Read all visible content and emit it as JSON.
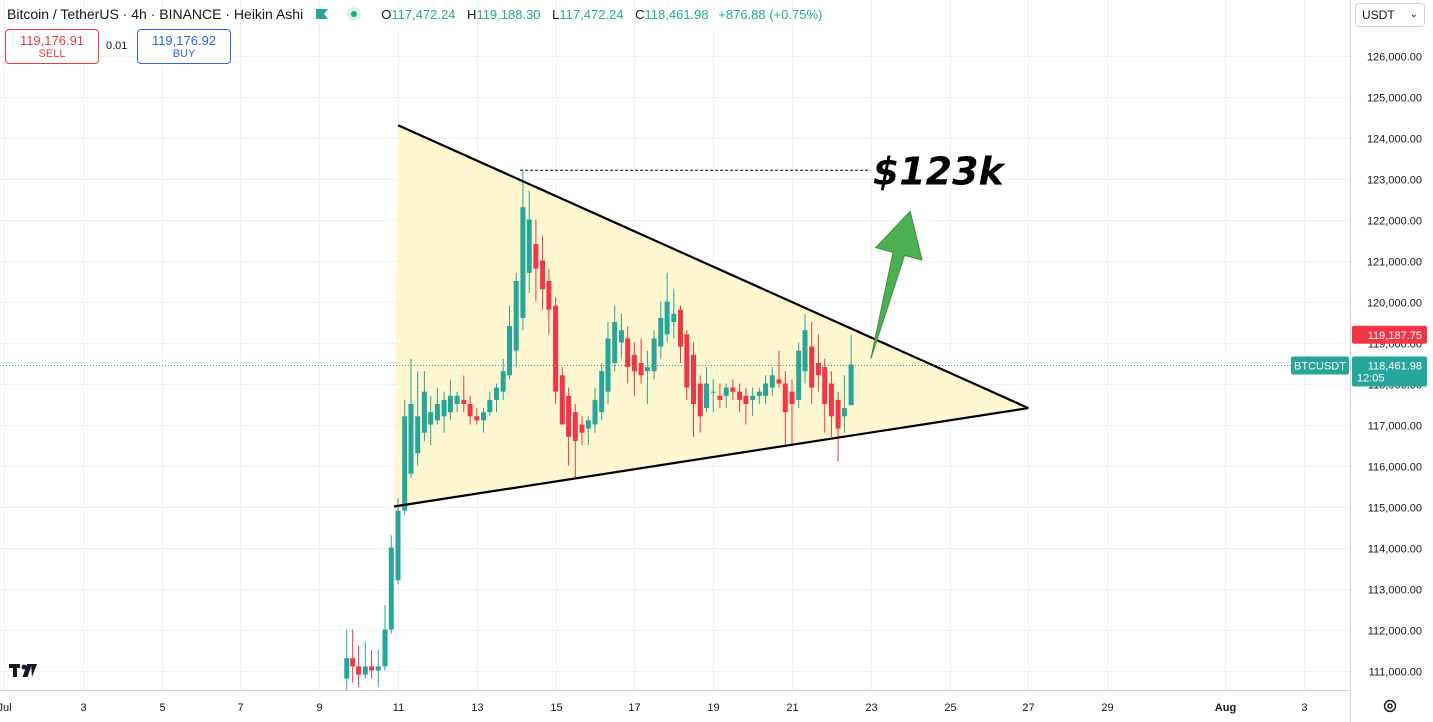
{
  "header": {
    "title": "Bitcoin / TetherUS · 4h · BINANCE · Heikin Ashi",
    "open_label": "O",
    "open": "117,472.24",
    "high_label": "H",
    "high": "119,188.30",
    "low_label": "L",
    "low": "117,472.24",
    "close_label": "C",
    "close": "118,461.98",
    "change": "+876.88 (+0.75%)"
  },
  "trade": {
    "sell_price": "119,176.91",
    "sell_label": "SELL",
    "spread": "0.01",
    "buy_price": "119,176.92",
    "buy_label": "BUY"
  },
  "currency": {
    "value": "USDT"
  },
  "price_tags": {
    "ask": "119,187.75",
    "symbol": "BTCUSDT",
    "last": "118,461.98",
    "countdown": "12:05"
  },
  "annotation": {
    "target": "$123k"
  },
  "colors": {
    "up": "#26a69a",
    "down": "#f23645",
    "triangle_fill": "#fff6c7",
    "arrow": "#4caf50"
  },
  "chart_data": {
    "type": "candlestick",
    "title": "Bitcoin / TetherUS · 4h · BINANCE · Heikin Ashi",
    "y_ticks": [
      "111,000.00",
      "112,000.00",
      "113,000.00",
      "114,000.00",
      "115,000.00",
      "116,000.00",
      "117,000.00",
      "118,000.00",
      "119,000.00",
      "120,000.00",
      "121,000.00",
      "122,000.00",
      "123,000.00",
      "124,000.00",
      "125,000.00",
      "126,000.00"
    ],
    "ylim": [
      110500,
      126800
    ],
    "x_ticks": [
      "Jul",
      "3",
      "5",
      "7",
      "9",
      "11",
      "13",
      "15",
      "17",
      "19",
      "21",
      "23",
      "25",
      "27",
      "29",
      "Aug",
      "3"
    ],
    "x_tick_days": [
      1,
      3,
      5,
      7,
      9,
      11,
      13,
      15,
      17,
      19,
      21,
      23,
      25,
      27,
      29,
      32,
      34
    ],
    "xlim_days": [
      1,
      36.2
    ],
    "grid": true,
    "candles": [
      {
        "d": 9.7,
        "o": 110800,
        "h": 112000,
        "l": 110500,
        "c": 111300
      },
      {
        "d": 9.85,
        "o": 111300,
        "h": 112000,
        "l": 110700,
        "c": 111100
      },
      {
        "d": 10.0,
        "o": 111100,
        "h": 111600,
        "l": 110600,
        "c": 110900
      },
      {
        "d": 10.17,
        "o": 110900,
        "h": 111700,
        "l": 110800,
        "c": 111100
      },
      {
        "d": 10.33,
        "o": 111100,
        "h": 111500,
        "l": 110800,
        "c": 111000
      },
      {
        "d": 10.5,
        "o": 111000,
        "h": 111500,
        "l": 110600,
        "c": 111100
      },
      {
        "d": 10.67,
        "o": 111100,
        "h": 112600,
        "l": 111000,
        "c": 112000
      },
      {
        "d": 10.83,
        "o": 112000,
        "h": 114300,
        "l": 111900,
        "c": 114000
      },
      {
        "d": 11.0,
        "o": 113200,
        "h": 115200,
        "l": 113100,
        "c": 114900
      },
      {
        "d": 11.17,
        "o": 114900,
        "h": 117600,
        "l": 114800,
        "c": 117200
      },
      {
        "d": 11.33,
        "o": 115800,
        "h": 118600,
        "l": 115700,
        "c": 117500
      },
      {
        "d": 11.5,
        "o": 116300,
        "h": 118300,
        "l": 116000,
        "c": 117200
      },
      {
        "d": 11.67,
        "o": 116800,
        "h": 118300,
        "l": 116600,
        "c": 117800
      },
      {
        "d": 11.83,
        "o": 117000,
        "h": 117700,
        "l": 116500,
        "c": 117300
      },
      {
        "d": 12.0,
        "o": 117100,
        "h": 117900,
        "l": 117000,
        "c": 117500
      },
      {
        "d": 12.17,
        "o": 117200,
        "h": 117800,
        "l": 116800,
        "c": 117600
      },
      {
        "d": 12.33,
        "o": 117300,
        "h": 118100,
        "l": 117100,
        "c": 117700
      },
      {
        "d": 12.5,
        "o": 117500,
        "h": 117800,
        "l": 117300,
        "c": 117700
      },
      {
        "d": 12.67,
        "o": 117600,
        "h": 118200,
        "l": 117300,
        "c": 117500
      },
      {
        "d": 12.83,
        "o": 117500,
        "h": 117700,
        "l": 117000,
        "c": 117200
      },
      {
        "d": 13.0,
        "o": 117200,
        "h": 117400,
        "l": 117000,
        "c": 117100
      },
      {
        "d": 13.17,
        "o": 117100,
        "h": 117400,
        "l": 116800,
        "c": 117300
      },
      {
        "d": 13.33,
        "o": 117300,
        "h": 117800,
        "l": 117200,
        "c": 117600
      },
      {
        "d": 13.5,
        "o": 117600,
        "h": 118000,
        "l": 117300,
        "c": 117900
      },
      {
        "d": 13.67,
        "o": 117800,
        "h": 118600,
        "l": 117600,
        "c": 118300
      },
      {
        "d": 13.83,
        "o": 118200,
        "h": 119900,
        "l": 118100,
        "c": 119400
      },
      {
        "d": 14.0,
        "o": 118800,
        "h": 120700,
        "l": 118400,
        "c": 120500
      },
      {
        "d": 14.17,
        "o": 119600,
        "h": 123200,
        "l": 119300,
        "c": 122300
      },
      {
        "d": 14.33,
        "o": 120700,
        "h": 122700,
        "l": 120200,
        "c": 122000
      },
      {
        "d": 14.5,
        "o": 121400,
        "h": 122000,
        "l": 120000,
        "c": 120800
      },
      {
        "d": 14.67,
        "o": 121000,
        "h": 121600,
        "l": 119800,
        "c": 120300
      },
      {
        "d": 14.83,
        "o": 120500,
        "h": 120800,
        "l": 119200,
        "c": 119800
      },
      {
        "d": 15.0,
        "o": 119900,
        "h": 120100,
        "l": 117500,
        "c": 117800
      },
      {
        "d": 15.17,
        "o": 118200,
        "h": 118400,
        "l": 117000,
        "c": 117000
      },
      {
        "d": 15.33,
        "o": 117700,
        "h": 117900,
        "l": 116000,
        "c": 116700
      },
      {
        "d": 15.5,
        "o": 117300,
        "h": 117500,
        "l": 115700,
        "c": 116600
      },
      {
        "d": 15.67,
        "o": 117000,
        "h": 117200,
        "l": 116500,
        "c": 116800
      },
      {
        "d": 15.83,
        "o": 116900,
        "h": 117200,
        "l": 116500,
        "c": 117100
      },
      {
        "d": 16.0,
        "o": 117000,
        "h": 117900,
        "l": 116800,
        "c": 117600
      },
      {
        "d": 16.17,
        "o": 117300,
        "h": 118500,
        "l": 117100,
        "c": 118300
      },
      {
        "d": 16.33,
        "o": 117800,
        "h": 119500,
        "l": 117500,
        "c": 119100
      },
      {
        "d": 16.5,
        "o": 118500,
        "h": 119900,
        "l": 118300,
        "c": 119500
      },
      {
        "d": 16.67,
        "o": 119000,
        "h": 119700,
        "l": 118600,
        "c": 119300
      },
      {
        "d": 16.83,
        "o": 119100,
        "h": 119400,
        "l": 118000,
        "c": 118400
      },
      {
        "d": 17.0,
        "o": 118700,
        "h": 119000,
        "l": 117700,
        "c": 118300
      },
      {
        "d": 17.17,
        "o": 118500,
        "h": 119100,
        "l": 118000,
        "c": 118200
      },
      {
        "d": 17.33,
        "o": 118300,
        "h": 118800,
        "l": 117500,
        "c": 118400
      },
      {
        "d": 17.5,
        "o": 118300,
        "h": 119300,
        "l": 118100,
        "c": 119100
      },
      {
        "d": 17.67,
        "o": 118900,
        "h": 120000,
        "l": 118600,
        "c": 119600
      },
      {
        "d": 17.83,
        "o": 119200,
        "h": 120700,
        "l": 119000,
        "c": 120000
      },
      {
        "d": 18.0,
        "o": 119500,
        "h": 120300,
        "l": 119100,
        "c": 119700
      },
      {
        "d": 18.17,
        "o": 119800,
        "h": 119900,
        "l": 118500,
        "c": 118900
      },
      {
        "d": 18.33,
        "o": 119200,
        "h": 119300,
        "l": 117600,
        "c": 117900
      },
      {
        "d": 18.5,
        "o": 118700,
        "h": 119000,
        "l": 116700,
        "c": 117500
      },
      {
        "d": 18.67,
        "o": 118000,
        "h": 118200,
        "l": 116800,
        "c": 117200
      },
      {
        "d": 18.83,
        "o": 117400,
        "h": 118400,
        "l": 117300,
        "c": 118000
      },
      {
        "d": 19.0,
        "o": 117800,
        "h": 118100,
        "l": 117300,
        "c": 117800
      },
      {
        "d": 19.17,
        "o": 117700,
        "h": 118000,
        "l": 117400,
        "c": 117600
      },
      {
        "d": 19.33,
        "o": 117700,
        "h": 118000,
        "l": 117400,
        "c": 117900
      },
      {
        "d": 19.5,
        "o": 117900,
        "h": 118100,
        "l": 117600,
        "c": 117800
      },
      {
        "d": 19.67,
        "o": 117800,
        "h": 118000,
        "l": 117300,
        "c": 117600
      },
      {
        "d": 19.83,
        "o": 117700,
        "h": 117900,
        "l": 117000,
        "c": 117500
      },
      {
        "d": 20.0,
        "o": 117600,
        "h": 117900,
        "l": 117200,
        "c": 117700
      },
      {
        "d": 20.17,
        "o": 117700,
        "h": 117900,
        "l": 117500,
        "c": 117800
      },
      {
        "d": 20.33,
        "o": 117700,
        "h": 118200,
        "l": 117500,
        "c": 118000
      },
      {
        "d": 20.5,
        "o": 117900,
        "h": 118400,
        "l": 117700,
        "c": 118200
      },
      {
        "d": 20.67,
        "o": 118100,
        "h": 118800,
        "l": 117900,
        "c": 118000
      },
      {
        "d": 20.83,
        "o": 118000,
        "h": 118300,
        "l": 116500,
        "c": 117300
      },
      {
        "d": 21.0,
        "o": 117800,
        "h": 118100,
        "l": 116500,
        "c": 117500
      },
      {
        "d": 21.17,
        "o": 117600,
        "h": 119000,
        "l": 117400,
        "c": 118800
      },
      {
        "d": 21.33,
        "o": 118300,
        "h": 119700,
        "l": 118000,
        "c": 119300
      },
      {
        "d": 21.5,
        "o": 118900,
        "h": 119500,
        "l": 117500,
        "c": 117900
      },
      {
        "d": 21.67,
        "o": 118500,
        "h": 119200,
        "l": 117800,
        "c": 118200
      },
      {
        "d": 21.83,
        "o": 118400,
        "h": 118600,
        "l": 116800,
        "c": 117500
      },
      {
        "d": 22.0,
        "o": 118000,
        "h": 118300,
        "l": 116700,
        "c": 117200
      },
      {
        "d": 22.17,
        "o": 117600,
        "h": 117800,
        "l": 116100,
        "c": 116900
      },
      {
        "d": 22.33,
        "o": 117200,
        "h": 118200,
        "l": 116800,
        "c": 117400
      },
      {
        "d": 22.5,
        "o": 117472.24,
        "h": 119188.3,
        "l": 117472.24,
        "c": 118461.98
      }
    ],
    "last_price": 118461.98,
    "ask_price": 119187.75,
    "triangle": [
      [
        11.0,
        124300
      ],
      [
        27.0,
        117400
      ],
      [
        10.9,
        115000
      ]
    ],
    "upper_line": [
      [
        11.0,
        124300
      ],
      [
        27.0,
        117400
      ]
    ],
    "lower_line": [
      [
        10.9,
        115000
      ],
      [
        27.0,
        117400
      ]
    ],
    "target_line": {
      "from_day": 14.1,
      "to_day": 23.0,
      "price": 123200
    },
    "arrow": {
      "from": [
        23.0,
        118600
      ],
      "to": [
        24.0,
        122200
      ]
    }
  }
}
